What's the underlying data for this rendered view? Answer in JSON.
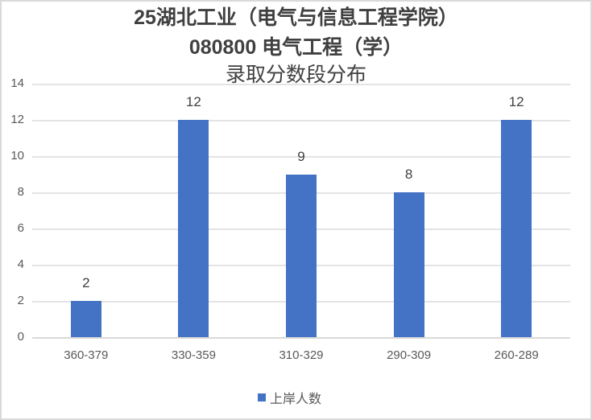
{
  "chart_data": {
    "type": "bar",
    "title_lines": [
      "25湖北工业（电气与信息工程学院）",
      "080800 电气工程（学）",
      "录取分数段分布"
    ],
    "categories": [
      "360-379",
      "330-359",
      "310-329",
      "290-309",
      "260-289"
    ],
    "series": [
      {
        "name": "上岸人数",
        "values": [
          2,
          12,
          9,
          8,
          12
        ],
        "color": "#4472c4"
      }
    ],
    "xlabel": "",
    "ylabel": "",
    "ylim": [
      0,
      14
    ],
    "yticks": [
      "14",
      "12",
      "10",
      "8",
      "6",
      "4",
      "2",
      "0"
    ],
    "grid": true,
    "legend_position": "bottom",
    "data_labels": [
      "2",
      "12",
      "9",
      "8",
      "12"
    ]
  }
}
